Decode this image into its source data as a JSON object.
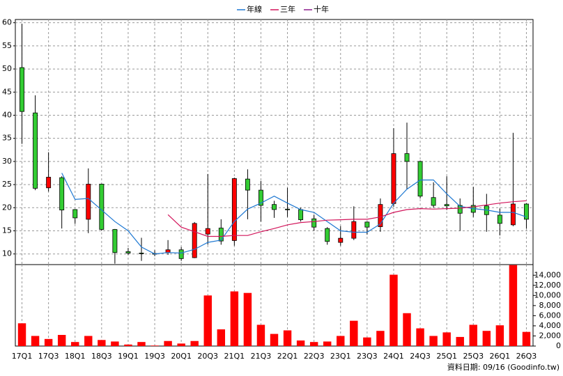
{
  "chart_data": {
    "type": "candlestick",
    "categories": [
      "17Q1",
      null,
      "17Q3",
      null,
      "18Q1",
      null,
      "18Q3",
      null,
      "19Q1",
      null,
      "19Q3",
      null,
      "20Q1",
      null,
      "20Q3",
      null,
      "21Q1",
      null,
      "21Q3",
      null,
      "22Q1",
      null,
      "22Q3",
      null,
      "23Q1",
      null,
      "23Q3",
      null,
      "24Q1",
      null,
      "24Q3",
      null,
      "25Q1",
      null,
      "25Q3",
      null,
      "26Q1",
      null,
      "26Q3"
    ],
    "open": [
      50.3,
      40.5,
      24.3,
      26.5,
      19.6,
      17.5,
      25.1,
      15.3,
      10.5,
      10.2,
      10.1,
      10.3,
      10.9,
      9.2,
      14.3,
      15.6,
      12.9,
      26.2,
      23.8,
      20.7,
      19.7,
      19.6,
      17.6,
      15.5,
      12.5,
      13.4,
      16.9,
      15.9,
      20.9,
      31.7,
      30,
      22.2,
      20.7,
      20.5,
      20.5,
      20.4,
      18.4,
      16.3,
      20.8
    ],
    "high": [
      59.8,
      44.3,
      32,
      26.8,
      19.6,
      28.5,
      25.2,
      15.4,
      11.3,
      13.5,
      10.8,
      13,
      11.5,
      16.9,
      27.3,
      17.5,
      26.5,
      28.3,
      25.8,
      21.5,
      24.3,
      20,
      18.5,
      15.8,
      16,
      20.3,
      17,
      22,
      37.2,
      38.4,
      30.2,
      25.5,
      26.8,
      22,
      24.5,
      23,
      19.8,
      36.2,
      21
    ],
    "low": [
      33.8,
      23.8,
      23.5,
      15.5,
      16.5,
      14.5,
      15,
      7.9,
      9.8,
      8.5,
      9.5,
      9.8,
      8.5,
      9.1,
      12,
      12,
      11.8,
      17.5,
      17,
      17.8,
      18,
      17,
      15,
      12,
      11.8,
      13,
      14.2,
      14.8,
      20.2,
      24,
      22,
      20,
      19.5,
      15,
      18,
      14.8,
      14,
      16,
      15.5
    ],
    "close": [
      40.8,
      24.2,
      26.6,
      19.5,
      17.8,
      25.1,
      15.3,
      10.3,
      10.2,
      10.1,
      10,
      10.9,
      9,
      16.6,
      15.5,
      12.8,
      26.3,
      23.8,
      20.5,
      19.6,
      19.6,
      17.4,
      15.8,
      12.7,
      13.4,
      17,
      15.8,
      20.7,
      31.7,
      30,
      22.5,
      20.5,
      20.4,
      18.8,
      19,
      18.5,
      16.6,
      20.8,
      17.5
    ],
    "up_color": "#ff0000",
    "down_color": "#33cc33",
    "series": [
      {
        "name": "年線",
        "color": "#1e78d2",
        "values": [
          null,
          null,
          null,
          27.5,
          21.8,
          22,
          19.5,
          17,
          15,
          11.5,
          10,
          10.3,
          10.2,
          11,
          12.5,
          13,
          17,
          19.7,
          21,
          22.5,
          21,
          19.6,
          19,
          17,
          15,
          14.7,
          14.7,
          16.5,
          21,
          24,
          26,
          26,
          23,
          20.3,
          19.8,
          19.5,
          19,
          19,
          18
        ]
      },
      {
        "name": "三年",
        "color": "#d2145a",
        "values": [
          null,
          null,
          null,
          null,
          null,
          null,
          null,
          null,
          null,
          null,
          null,
          18.5,
          15.8,
          14.8,
          13.8,
          13.8,
          14,
          14,
          14.8,
          15.5,
          16.3,
          16.8,
          17,
          17.3,
          17.4,
          17.5,
          17.5,
          18,
          19,
          19.6,
          19.8,
          19.7,
          19.8,
          19.9,
          20.2,
          20.6,
          21,
          21.3,
          21.5
        ]
      },
      {
        "name": "十年",
        "color": "#8c1e8c",
        "values": [
          null,
          null,
          null,
          null,
          null,
          null,
          null,
          null,
          null,
          null,
          null,
          null,
          null,
          null,
          null,
          null,
          null,
          null,
          null,
          null,
          null,
          null,
          null,
          null,
          null,
          null,
          null,
          null,
          null,
          null,
          null,
          null,
          null,
          null,
          null,
          null,
          null,
          null,
          null
        ]
      }
    ],
    "ylim": [
      7.7,
      60.7
    ],
    "yticks": [
      10,
      15,
      20,
      25,
      30,
      35,
      40,
      45,
      50,
      55,
      60
    ],
    "grid": true,
    "volume": {
      "values": [
        4500,
        2000,
        1400,
        2200,
        800,
        2000,
        1200,
        900,
        300,
        800,
        100,
        1000,
        500,
        1000,
        10000,
        3300,
        10800,
        10500,
        4200,
        2400,
        3100,
        1100,
        800,
        900,
        2000,
        5000,
        1700,
        3000,
        14100,
        6500,
        3500,
        2000,
        2700,
        1800,
        4200,
        3000,
        4100,
        16000,
        2800
      ],
      "color": "#ff0000",
      "ylim": [
        0,
        16100
      ],
      "yticks": [
        0,
        {
          "value": 2000,
          "label": "2,000"
        },
        {
          "value": 4000,
          "label": "4,000"
        },
        {
          "value": 6000,
          "label": "6,000"
        },
        {
          "value": 8000,
          "label": "8,000"
        },
        {
          "value": 10000,
          "label": "10,000"
        },
        {
          "value": 12000,
          "label": "12,000"
        },
        {
          "value": 14000,
          "label": "14,000"
        }
      ]
    },
    "source": "資料日期: 09/16  (Goodinfo.tw)"
  }
}
